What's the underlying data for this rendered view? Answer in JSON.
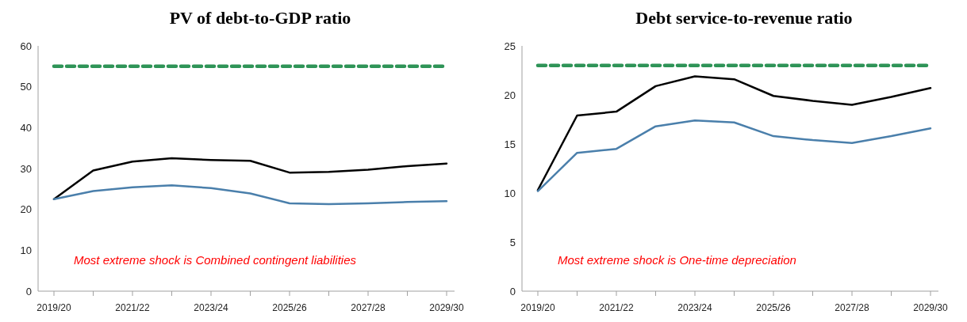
{
  "chart_data": [
    {
      "type": "line",
      "title": "PV of debt-to-GDP ratio",
      "categories": [
        "2019/20",
        null,
        "2021/22",
        null,
        "2023/24",
        null,
        "2025/26",
        null,
        "2027/28",
        null,
        "2029/30"
      ],
      "ylim": [
        0,
        60
      ],
      "yticks": [
        0,
        10,
        20,
        30,
        40,
        50,
        60
      ],
      "grid": false,
      "legend": false,
      "marker": "none",
      "series": [
        {
          "color": "#2e9457",
          "line_style": "dashed",
          "values": [
            55,
            55,
            55,
            55,
            55,
            55,
            55,
            55,
            55,
            55,
            55
          ]
        },
        {
          "color": "#000000",
          "line_style": "solid",
          "values": [
            22.5,
            29.5,
            31.7,
            32.5,
            32.1,
            31.9,
            29.0,
            29.2,
            29.7,
            30.6,
            31.2
          ]
        },
        {
          "color": "#4a7fab",
          "line_style": "solid",
          "values": [
            22.5,
            24.5,
            25.4,
            25.9,
            25.2,
            23.9,
            21.5,
            21.3,
            21.5,
            21.8,
            22.0
          ]
        }
      ],
      "annotations": [
        "Most extreme shock is Combined contingent liabilities"
      ]
    },
    {
      "type": "line",
      "title": "Debt service-to-revenue ratio",
      "categories": [
        "2019/20",
        null,
        "2021/22",
        null,
        "2023/24",
        null,
        "2025/26",
        null,
        "2027/28",
        null,
        "2029/30"
      ],
      "ylim": [
        0,
        25
      ],
      "yticks": [
        0,
        5,
        10,
        15,
        20,
        25
      ],
      "grid": false,
      "legend": false,
      "marker": "none",
      "series": [
        {
          "color": "#2e9457",
          "line_style": "dashed",
          "values": [
            23,
            23,
            23,
            23,
            23,
            23,
            23,
            23,
            23,
            23,
            23
          ]
        },
        {
          "color": "#000000",
          "line_style": "solid",
          "values": [
            10.3,
            17.9,
            18.3,
            20.9,
            21.9,
            21.6,
            19.9,
            19.4,
            19.0,
            19.8,
            20.7
          ]
        },
        {
          "color": "#4a7fab",
          "line_style": "solid",
          "values": [
            10.2,
            14.1,
            14.5,
            16.8,
            17.4,
            17.2,
            15.8,
            15.4,
            15.1,
            15.8,
            16.6
          ]
        }
      ],
      "annotations": [
        "Most extreme shock is One-time depreciation"
      ]
    }
  ]
}
